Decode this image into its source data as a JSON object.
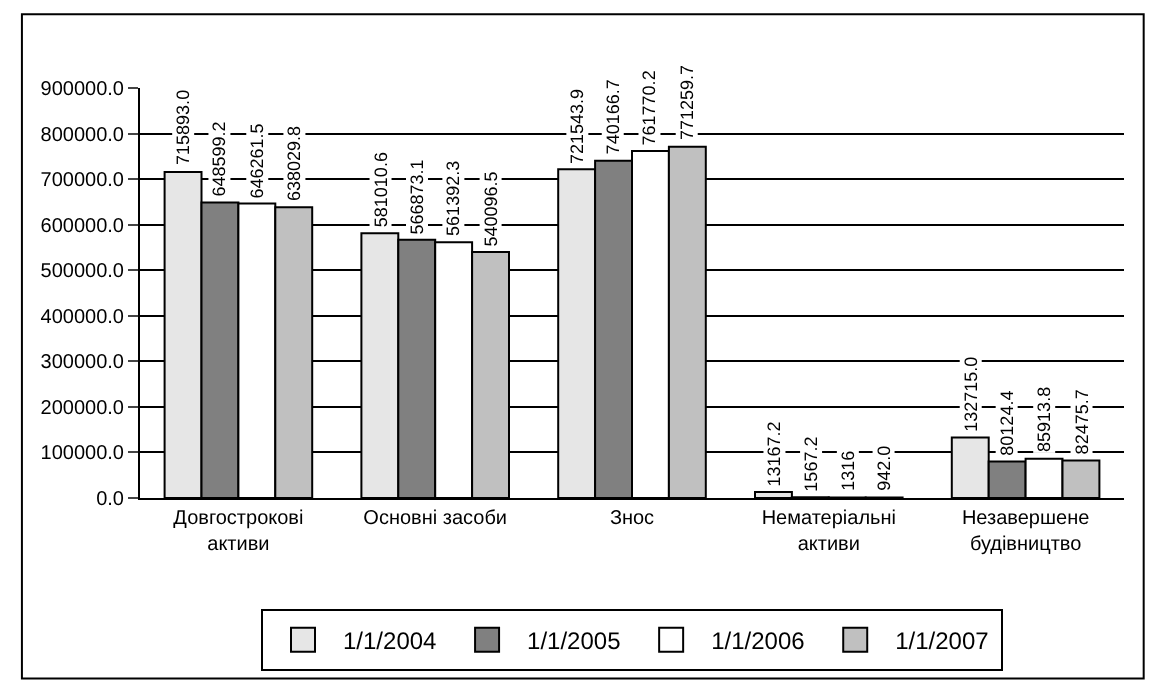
{
  "chart_data": {
    "type": "bar",
    "categories": [
      "Довгострокові активи",
      "Основні засоби",
      "Знос",
      "Нематеріальні активи",
      "Незавершене будівництво"
    ],
    "series": [
      {
        "name": "1/1/2004",
        "color": "#e6e6e6",
        "values": [
          715893.0,
          581010.6,
          721543.9,
          13167.2,
          132715.0
        ],
        "value_labels": [
          "715893.0",
          "581010.6",
          "721543.9",
          "13167.2",
          "132715.0"
        ]
      },
      {
        "name": "1/1/2005",
        "color": "#808080",
        "values": [
          648599.2,
          566873.1,
          740166.7,
          1567.2,
          80124.4
        ],
        "value_labels": [
          "648599.2",
          "566873.1",
          "740166.7",
          "1567.2",
          "80124.4"
        ]
      },
      {
        "name": "1/1/2006",
        "color": "#ffffff",
        "values": [
          646261.5,
          561392.3,
          761770.2,
          1316,
          85913.8
        ],
        "value_labels": [
          "646261.5",
          "561392.3",
          "761770.2",
          "1316",
          "85913.8"
        ]
      },
      {
        "name": "1/1/2007",
        "color": "#c0c0c0",
        "values": [
          638029.8,
          540096.5,
          771259.7,
          942.0,
          82475.7
        ],
        "value_labels": [
          "638029.8",
          "540096.5",
          "771259.7",
          "942.0",
          "82475.7"
        ]
      }
    ],
    "ylim": [
      0,
      900000
    ],
    "yticks": [
      {
        "value": 0,
        "label": "0.0"
      },
      {
        "value": 100000,
        "label": "100000.0"
      },
      {
        "value": 200000,
        "label": "200000.0"
      },
      {
        "value": 300000,
        "label": "300000.0"
      },
      {
        "value": 400000,
        "label": "400000.0"
      },
      {
        "value": 500000,
        "label": "500000.0"
      },
      {
        "value": 600000,
        "label": "600000.0"
      },
      {
        "value": 700000,
        "label": "700000.0"
      },
      {
        "value": 800000,
        "label": "800000.0"
      },
      {
        "value": 900000,
        "label": "900000.0"
      }
    ],
    "grid": "y",
    "legend": "bottom"
  }
}
